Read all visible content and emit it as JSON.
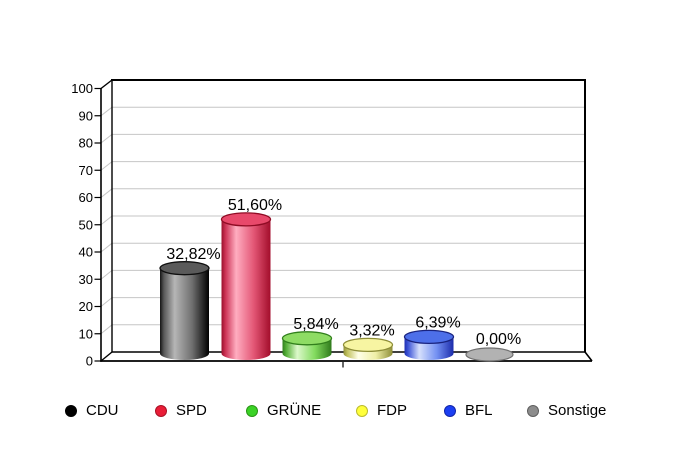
{
  "chart_data": {
    "type": "bar",
    "bar_shape": "3d-cylinder",
    "title": "",
    "xlabel": "",
    "ylabel": "",
    "categories": [
      "CDU",
      "SPD",
      "GRÜNE",
      "FDP",
      "BFL",
      "Sonstige"
    ],
    "values": [
      32.82,
      51.6,
      5.84,
      3.32,
      6.39,
      0
    ],
    "value_labels": [
      "32,82%",
      "51,60%",
      "5,84%",
      "3,32%",
      "6,39%",
      "0,00%"
    ],
    "ylim": [
      0,
      100
    ],
    "yticks": [
      0,
      10,
      20,
      30,
      40,
      50,
      60,
      70,
      80,
      90,
      100
    ],
    "grid": true,
    "gridline_color": "#C6C6C6",
    "axis_color": "#000000",
    "background_color": "#FFFFFF",
    "label_color": "#000000",
    "legend_position": "bottom",
    "bars": [
      {
        "name": "CDU",
        "stops": [
          "#141414",
          "#585858",
          "#B6B6B6",
          "#6E6E6E",
          "#000000"
        ],
        "top": "#5A5A5A",
        "rim": "#0F0F0F",
        "legend": "#000000",
        "legend_border": "#000000"
      },
      {
        "name": "SPD",
        "stops": [
          "#99102C",
          "#CC3355",
          "#FFADC0",
          "#E35675",
          "#A30D2B"
        ],
        "top": "#E8496B",
        "rim": "#8F0B24",
        "legend": "#E91D37",
        "legend_border": "#A81226"
      },
      {
        "name": "GRÜNE",
        "stops": [
          "#317F1C",
          "#57B13A",
          "#DCF8CA",
          "#82DB5E",
          "#2F7A1B"
        ],
        "top": "#8EDC64",
        "rim": "#317F1C",
        "legend": "#3BD226",
        "legend_border": "#2A9416"
      },
      {
        "name": "FDP",
        "stops": [
          "#90903A",
          "#C2C260",
          "#FFFFE8",
          "#EFEFA6",
          "#8E8E38"
        ],
        "top": "#F7F5A2",
        "rim": "#8E8E38",
        "legend": "#FFFF3B",
        "legend_border": "#BBBB2E"
      },
      {
        "name": "BFL",
        "stops": [
          "#1E2FB4",
          "#4159D8",
          "#D6E0FC",
          "#7390F2",
          "#1C2CAC"
        ],
        "top": "#4D6FE9",
        "rim": "#19237F",
        "legend": "#1B3FF2",
        "legend_border": "#1326A8"
      },
      {
        "name": "Sonstige",
        "stops": [
          "#8A8A8A",
          "#9E9E9E",
          "#D9D9D9",
          "#BFBFBF",
          "#7A7A7A"
        ],
        "top": "#B2B2B2",
        "rim": "#707070",
        "legend": "#8C8C8C",
        "legend_border": "#5E5E5E"
      }
    ]
  }
}
